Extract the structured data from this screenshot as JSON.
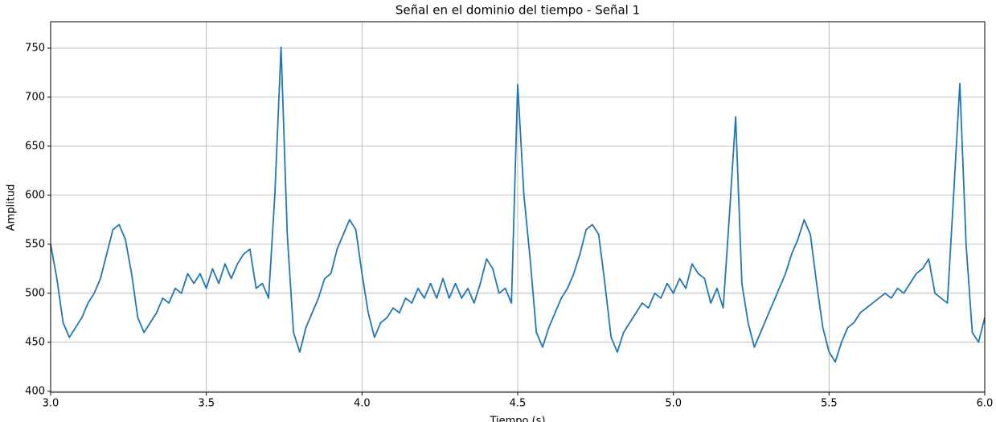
{
  "chart_data": {
    "type": "line",
    "title": "Señal en el dominio del tiempo - Señal 1",
    "x_label": "Tiempo (s)",
    "y_label": "Amplitud",
    "x": [
      3.0,
      3.02,
      3.04,
      3.06,
      3.08,
      3.1,
      3.12,
      3.14,
      3.16,
      3.18,
      3.2,
      3.22,
      3.24,
      3.26,
      3.28,
      3.3,
      3.32,
      3.34,
      3.36,
      3.38,
      3.4,
      3.42,
      3.44,
      3.46,
      3.48,
      3.5,
      3.52,
      3.54,
      3.56,
      3.58,
      3.6,
      3.62,
      3.64,
      3.66,
      3.68,
      3.7,
      3.72,
      3.74,
      3.76,
      3.78,
      3.8,
      3.82,
      3.84,
      3.86,
      3.88,
      3.9,
      3.92,
      3.94,
      3.96,
      3.98,
      4.0,
      4.02,
      4.04,
      4.06,
      4.08,
      4.1,
      4.12,
      4.14,
      4.16,
      4.18,
      4.2,
      4.22,
      4.24,
      4.26,
      4.28,
      4.3,
      4.32,
      4.34,
      4.36,
      4.38,
      4.4,
      4.42,
      4.44,
      4.46,
      4.48,
      4.5,
      4.52,
      4.54,
      4.56,
      4.58,
      4.6,
      4.62,
      4.64,
      4.66,
      4.68,
      4.7,
      4.72,
      4.74,
      4.76,
      4.78,
      4.8,
      4.82,
      4.84,
      4.86,
      4.88,
      4.9,
      4.92,
      4.94,
      4.96,
      4.98,
      5.0,
      5.02,
      5.04,
      5.06,
      5.08,
      5.1,
      5.12,
      5.14,
      5.16,
      5.18,
      5.2,
      5.22,
      5.24,
      5.26,
      5.28,
      5.3,
      5.32,
      5.34,
      5.36,
      5.38,
      5.4,
      5.42,
      5.44,
      5.46,
      5.48,
      5.5,
      5.52,
      5.54,
      5.56,
      5.58,
      5.6,
      5.62,
      5.64,
      5.66,
      5.68,
      5.7,
      5.72,
      5.74,
      5.76,
      5.78,
      5.8,
      5.82,
      5.84,
      5.86,
      5.88,
      5.9,
      5.92,
      5.94,
      5.96,
      5.98,
      6.0
    ],
    "series": [
      {
        "color": "#1f77b4",
        "values": [
          550,
          515,
          470,
          455,
          465,
          475,
          490,
          500,
          515,
          540,
          565,
          570,
          555,
          520,
          475,
          460,
          470,
          480,
          495,
          490,
          505,
          500,
          520,
          510,
          520,
          505,
          525,
          510,
          530,
          515,
          530,
          540,
          545,
          505,
          510,
          495,
          600,
          751,
          560,
          460,
          440,
          465,
          480,
          495,
          515,
          520,
          545,
          560,
          575,
          565,
          520,
          480,
          455,
          470,
          475,
          485,
          480,
          495,
          490,
          505,
          495,
          510,
          495,
          515,
          495,
          510,
          495,
          505,
          490,
          510,
          535,
          525,
          500,
          505,
          490,
          713,
          600,
          535,
          460,
          445,
          465,
          480,
          495,
          505,
          520,
          540,
          565,
          570,
          560,
          510,
          455,
          440,
          460,
          470,
          480,
          490,
          485,
          500,
          495,
          510,
          500,
          515,
          505,
          530,
          520,
          515,
          490,
          505,
          485,
          580,
          680,
          510,
          470,
          445,
          460,
          475,
          490,
          505,
          520,
          540,
          555,
          575,
          560,
          510,
          465,
          440,
          430,
          450,
          465,
          470,
          480,
          485,
          490,
          495,
          500,
          495,
          505,
          500,
          510,
          520,
          525,
          535,
          500,
          495,
          490,
          600,
          714,
          550,
          460,
          450,
          475
        ]
      }
    ],
    "xlim": [
      3.0,
      6.0
    ],
    "ylim": [
      399,
      777
    ],
    "xticks": [
      {
        "value": 3.0,
        "label": "3.0"
      },
      3.5,
      {
        "value": 4.0,
        "label": "4.0"
      },
      4.5,
      {
        "value": 5.0,
        "label": "5.0"
      },
      5.5,
      {
        "value": 6.0,
        "label": "6.0"
      }
    ],
    "yticks": [
      400,
      450,
      500,
      550,
      600,
      650,
      700,
      750
    ],
    "grid": true
  }
}
